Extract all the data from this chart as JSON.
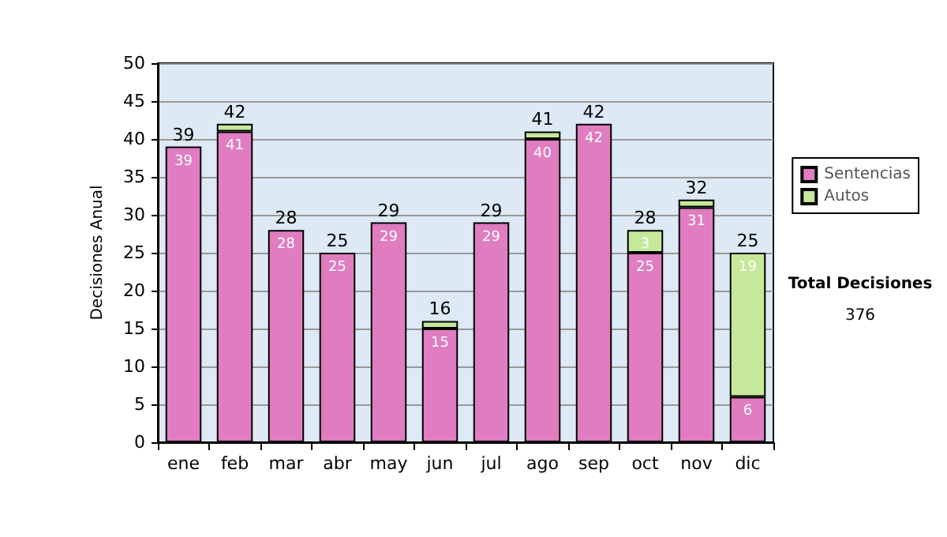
{
  "chart_data": {
    "type": "bar",
    "ylabel": "Decisiones Anual",
    "categories": [
      "ene",
      "feb",
      "mar",
      "abr",
      "may",
      "jun",
      "jul",
      "ago",
      "sep",
      "oct",
      "nov",
      "dic"
    ],
    "stacked": true,
    "series": [
      {
        "name": "Sentencias",
        "color": "#e07cc0",
        "values": [
          39,
          41,
          28,
          25,
          29,
          15,
          29,
          40,
          42,
          25,
          31,
          6
        ],
        "value_labels": [
          "39",
          "41",
          "28",
          "25",
          "29",
          "15",
          "29",
          "40",
          "42",
          "25",
          "31",
          "6"
        ]
      },
      {
        "name": "Autos",
        "color": "#c6e89a",
        "values": [
          null,
          1,
          null,
          null,
          null,
          1,
          null,
          1,
          null,
          3,
          1,
          19
        ],
        "value_labels": [
          null,
          null,
          null,
          null,
          null,
          null,
          null,
          null,
          null,
          "3",
          null,
          "19"
        ]
      }
    ],
    "totals": [
      "39",
      "42",
      "28",
      "25",
      "29",
      "16",
      "29",
      "41",
      "42",
      "28",
      "32",
      "25"
    ],
    "ylim": [
      0,
      50
    ],
    "yticks": [
      0,
      5,
      10,
      15,
      20,
      25,
      30,
      35,
      40,
      45,
      50
    ],
    "grid": "y",
    "legend": "right",
    "annotations": [
      "Total Decisiones",
      "376"
    ]
  }
}
